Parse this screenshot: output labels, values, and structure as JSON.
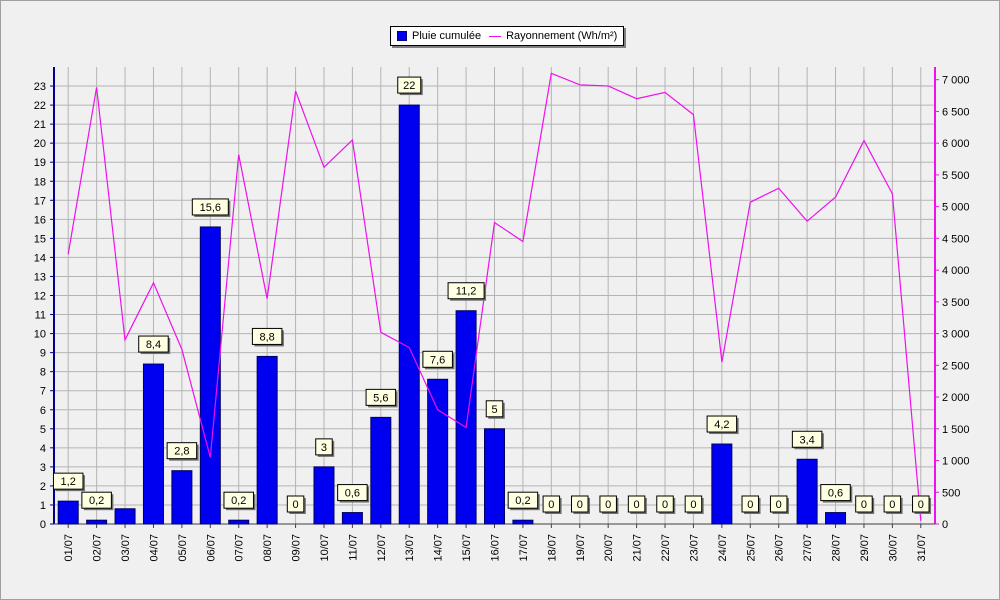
{
  "chart_data": {
    "type": "bar",
    "categories": [
      "01/07",
      "02/07",
      "03/07",
      "04/07",
      "05/07",
      "06/07",
      "07/07",
      "08/07",
      "09/07",
      "10/07",
      "11/07",
      "12/07",
      "13/07",
      "14/07",
      "15/07",
      "16/07",
      "17/07",
      "18/07",
      "19/07",
      "20/07",
      "21/07",
      "22/07",
      "23/07",
      "24/07",
      "25/07",
      "26/07",
      "27/07",
      "28/07",
      "29/07",
      "30/07",
      "31/07"
    ],
    "series": [
      {
        "name": "Pluie cumulée",
        "type": "bar",
        "axis": "left",
        "color": "#0000f0",
        "values": [
          1.2,
          0.2,
          0.8,
          8.4,
          2.8,
          15.6,
          0.2,
          8.8,
          0,
          3,
          0.6,
          5.6,
          22,
          7.6,
          11.2,
          5,
          0.2,
          0,
          0,
          0,
          0,
          0,
          0,
          4.2,
          0,
          0,
          3.4,
          0.6,
          0,
          0,
          0
        ],
        "labels": [
          "1,2",
          "0,2",
          null,
          "8,4",
          "2,8",
          "15,6",
          "0,2",
          "8,8",
          "0",
          "3",
          "0,6",
          "5,6",
          "22",
          "7,6",
          "11,2",
          "5",
          "0,2",
          "0",
          "0",
          "0",
          "0",
          "0",
          "0",
          "4,2",
          "0",
          "0",
          "3,4",
          "0,6",
          "0",
          "0",
          "0"
        ]
      },
      {
        "name": "Rayonnement (Wh/m²)",
        "type": "line",
        "axis": "right",
        "color": "#ee11ee",
        "values": [
          4250,
          6880,
          2900,
          3800,
          2750,
          1050,
          5820,
          3550,
          6820,
          5620,
          6050,
          3020,
          2780,
          1800,
          1520,
          4750,
          4450,
          7100,
          6920,
          6900,
          6700,
          6800,
          6450,
          2550,
          5070,
          5290,
          4770,
          5150,
          6040,
          5200,
          50
        ]
      }
    ],
    "y_left": {
      "range": [
        0,
        24
      ],
      "ticks": [
        0,
        1,
        2,
        3,
        4,
        5,
        6,
        7,
        8,
        9,
        10,
        11,
        12,
        13,
        14,
        15,
        16,
        17,
        18,
        19,
        20,
        21,
        22,
        23
      ]
    },
    "y_right": {
      "range": [
        0,
        7200
      ],
      "ticks": [
        0,
        500,
        1000,
        1500,
        2000,
        2500,
        3000,
        3500,
        4000,
        4500,
        5000,
        5500,
        6000,
        6500,
        7000
      ],
      "tick_labels": [
        "0",
        "500",
        "1 000",
        "1 500",
        "2 000",
        "2 500",
        "3 000",
        "3 500",
        "4 000",
        "4 500",
        "5 000",
        "5 500",
        "6 000",
        "6 500",
        "7 000"
      ]
    },
    "grid": true,
    "legend_position": "top-center"
  }
}
